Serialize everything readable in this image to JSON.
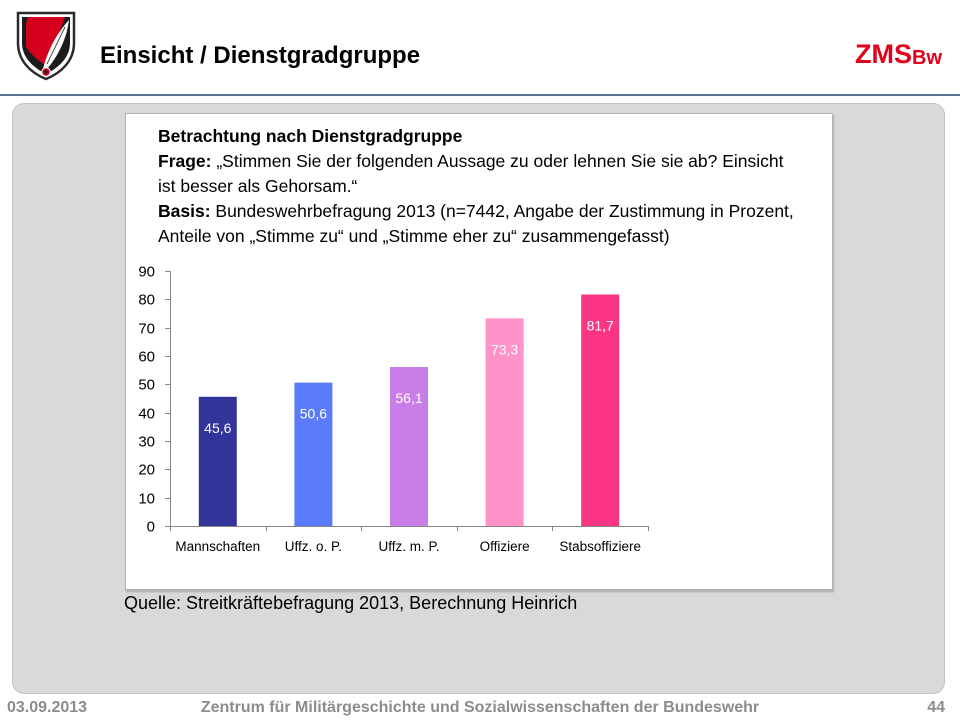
{
  "header": {
    "logo_icon": "shield-quill-logo-icon",
    "title": "Einsicht / Dienstgradgruppe",
    "brand_main": "ZMS",
    "brand_sub": "Bw",
    "brand_color": "#e2001a"
  },
  "chart_data": {
    "type": "bar",
    "title": "Betrachtung nach Dienstgradgruppe",
    "question": {
      "label": "Frage:",
      "lines": [
        "„Stimmen Sie der folgenden Aussage zu oder lehnen Sie sie ab? Einsicht",
        "ist besser als Gehorsam.“"
      ]
    },
    "basis": {
      "label": "Basis:",
      "lines": [
        "Bundeswehrbefragung 2013 (n=7442, Angabe der Zustimmung in Prozent,",
        "Anteile von „Stimme zu“ und „Stimme eher zu“ zusammengefasst)"
      ]
    },
    "categories": [
      "Mannschaften",
      "Uffz. o. P.",
      "Uffz. m. P.",
      "Offiziere",
      "Stabsoffiziere"
    ],
    "values": [
      45.6,
      50.6,
      56.1,
      73.3,
      81.7
    ],
    "data_labels": [
      "45,6",
      "50,6",
      "56,1",
      "73,3",
      "81,7"
    ],
    "colors": [
      "#32349a",
      "#5b7cfa",
      "#c97de6",
      "#ff92c8",
      "#fa3583"
    ],
    "ylim": [
      0,
      90
    ],
    "yticks": [
      0,
      10,
      20,
      30,
      40,
      50,
      60,
      70,
      80,
      90
    ],
    "grid": false,
    "legend": false,
    "source": "Quelle: Streitkräftebefragung 2013, Berechnung Heinrich"
  },
  "footer": {
    "date": "03.09.2013",
    "institution": "Zentrum für Militärgeschichte und Sozialwissenschaften der Bundeswehr",
    "page_number": "44"
  }
}
